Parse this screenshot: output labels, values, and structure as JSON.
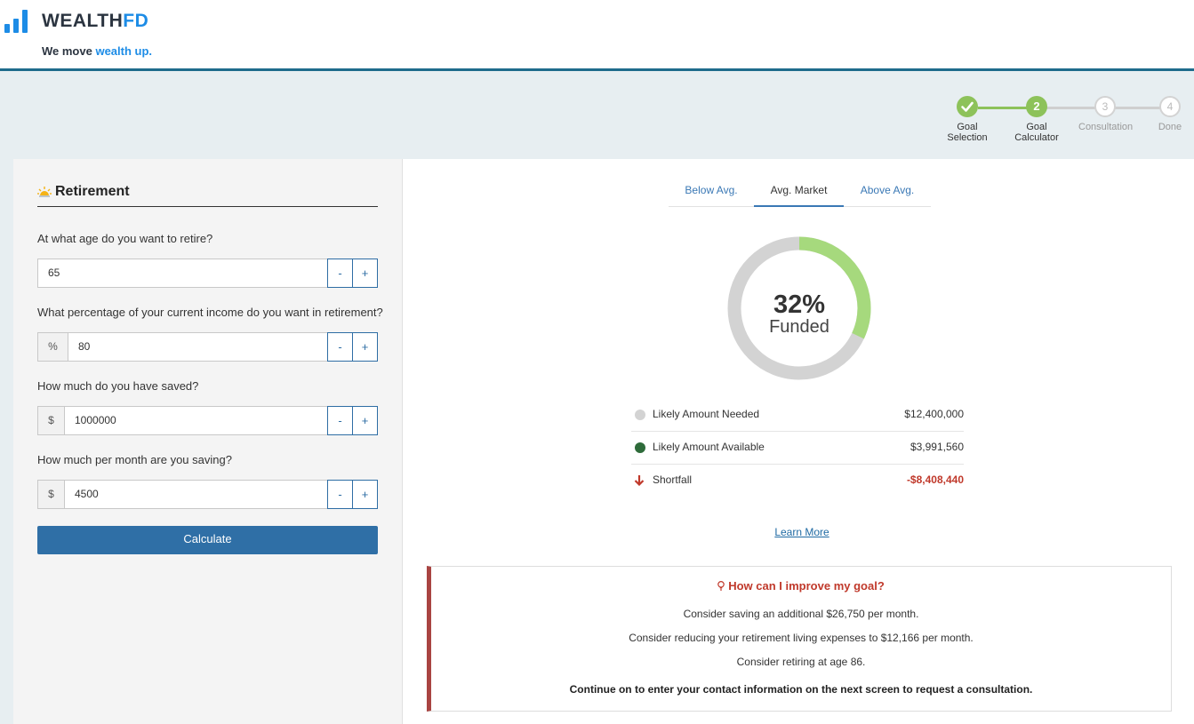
{
  "brand": {
    "name_main": "WEALTH",
    "name_accent": "FD",
    "tagline_main": "We move ",
    "tagline_accent": "wealth up."
  },
  "stepper": {
    "steps": [
      {
        "number": "",
        "label_line1": "Goal",
        "label_line2": "Selection",
        "state": "done"
      },
      {
        "number": "2",
        "label_line1": "Goal",
        "label_line2": "Calculator",
        "state": "current"
      },
      {
        "number": "3",
        "label_line1": "Consultation",
        "label_line2": "",
        "state": "todo"
      },
      {
        "number": "4",
        "label_line1": "Done",
        "label_line2": "",
        "state": "todo"
      }
    ]
  },
  "form": {
    "title": "Retirement",
    "icon": "sun-icon",
    "fields": [
      {
        "question": "At what age do you want to retire?",
        "prefix": "",
        "value": "65"
      },
      {
        "question": "What percentage of your current income do you want in retirement?",
        "prefix": "%",
        "value": "80"
      },
      {
        "question": "How much do you have saved?",
        "prefix": "$",
        "value": "1000000"
      },
      {
        "question": "How much per month are you saving?",
        "prefix": "$",
        "value": "4500"
      }
    ],
    "minus_label": "-",
    "plus_label": "+",
    "calculate_label": "Calculate"
  },
  "tabs": [
    {
      "label": "Below Avg.",
      "active": false
    },
    {
      "label": "Avg. Market",
      "active": true
    },
    {
      "label": "Above Avg.",
      "active": false
    }
  ],
  "result": {
    "funded_percent": 32,
    "percent_label": "32%",
    "funded_label": "Funded",
    "colors": {
      "funded": "#a6d97d",
      "remaining": "#d3d3d3",
      "negative": "#c0392b"
    },
    "rows": [
      {
        "label": "Likely Amount Needed",
        "amount": "$12,400,000",
        "marker": "dot",
        "color": "#d3d3d3"
      },
      {
        "label": "Likely Amount Available",
        "amount": "$3,991,560",
        "marker": "dot",
        "color": "#2e6b3a"
      },
      {
        "label": "Shortfall",
        "amount": "-$8,408,440",
        "marker": "down-arrow-icon",
        "color": "#c0392b"
      }
    ],
    "learn_more": "Learn More"
  },
  "improve": {
    "title": "How can I improve my goal?",
    "tips": [
      "Consider saving an additional $26,750 per month.",
      "Consider reducing your retirement living expenses to $12,166 per month.",
      "Consider retiring at age 86."
    ],
    "cta": "Continue on to enter your contact information on the next screen to request a consultation."
  }
}
